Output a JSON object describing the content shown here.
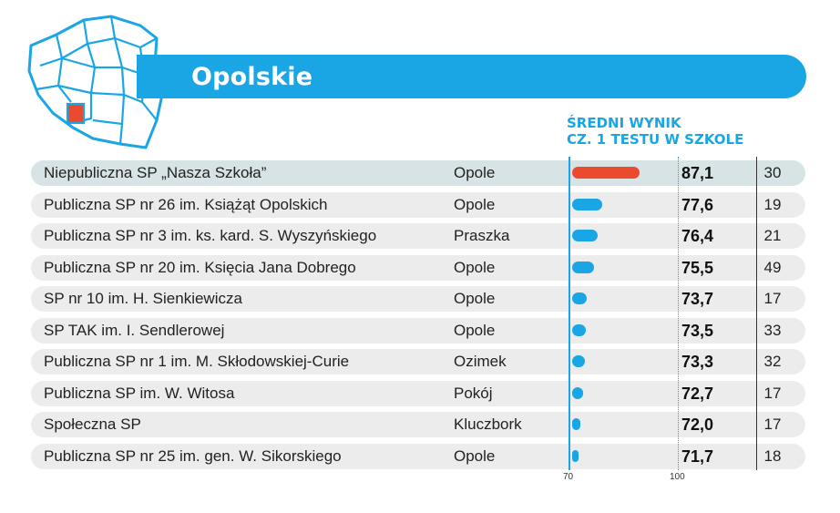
{
  "title": "Opolskie",
  "column_header": {
    "line1": "ŚREDNI WYNIK",
    "line2": "CZ. 1 TESTU W SZKOLE"
  },
  "colors": {
    "accent": "#1aa6e4",
    "highlight_bar": "#ea4a2e",
    "row_bg": "#ececec",
    "highlight_row_bg": "#d7e3e4"
  },
  "chart_data": {
    "type": "bar",
    "categories": [
      "Niepubliczna SP „Nasza Szkoła”",
      "Publiczna SP nr 26 im. Książąt Opolskich",
      "Publiczna SP nr 3 im. ks. kard. S. Wyszyńskiego",
      "Publiczna SP nr 20 im. Księcia Jana Dobrego",
      "SP nr 10 im. H. Sienkiewicza",
      "SP TAK im. I. Sendlerowej",
      "Publiczna SP nr 1 im. M. Skłodowskiej-Curie",
      "Publiczna SP im. W. Witosa",
      "Społeczna SP",
      "Publiczna SP nr 25 im. gen. W. Sikorskiego"
    ],
    "cities": [
      "Opole",
      "Opole",
      "Praszka",
      "Opole",
      "Opole",
      "Opole",
      "Ozimek",
      "Pokój",
      "Kluczbork",
      "Opole"
    ],
    "values": [
      87.1,
      77.6,
      76.4,
      75.5,
      73.7,
      73.5,
      73.3,
      72.7,
      72.0,
      71.7
    ],
    "value_labels": [
      "87,1",
      "77,6",
      "76,4",
      "75,5",
      "73,7",
      "73,5",
      "73,3",
      "72,7",
      "72,0",
      "71,7"
    ],
    "counts": [
      "30",
      "19",
      "21",
      "49",
      "17",
      "33",
      "32",
      "17",
      "17",
      "18"
    ],
    "highlight_index": 0,
    "xlim": [
      70,
      100
    ],
    "x_tick_labels": [
      "70",
      "100"
    ],
    "title": "ŚREDNI WYNIK CZ. 1 TESTU W SZKOLE"
  }
}
